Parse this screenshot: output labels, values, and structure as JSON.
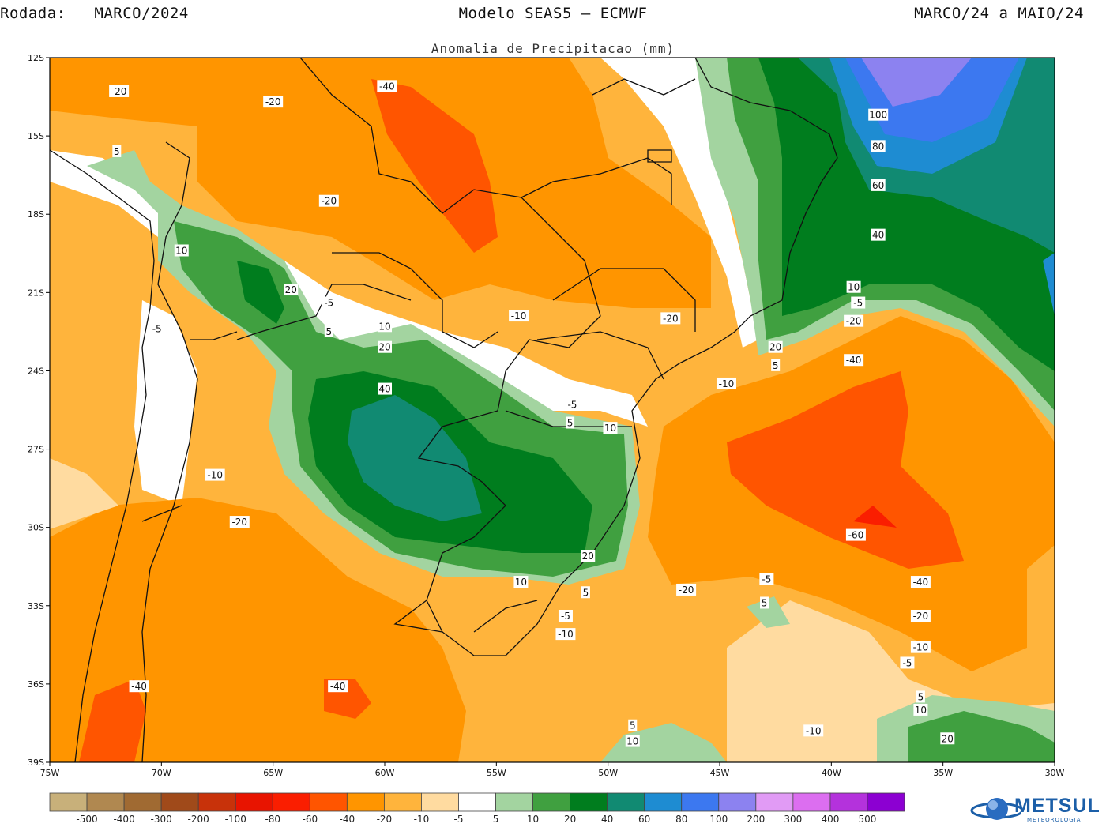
{
  "header": {
    "run_label": "Rodada:",
    "run_value": "MARCO/2024",
    "model": "Modelo SEAS5 – ECMWF",
    "period": "MARCO/24 a MAIO/24"
  },
  "map": {
    "title": "Anomalia de Precipitacao (mm)",
    "lon_ticks": [
      "75W",
      "70W",
      "65W",
      "60W",
      "55W",
      "50W",
      "45W",
      "40W",
      "35W",
      "30W"
    ],
    "lat_ticks": [
      "12S",
      "15S",
      "18S",
      "21S",
      "24S",
      "27S",
      "30S",
      "33S",
      "36S",
      "39S"
    ],
    "contour_labels": [
      {
        "t": "-20",
        "lon": -71.9,
        "lat": -13.3
      },
      {
        "t": "-20",
        "lon": -65,
        "lat": -13.7
      },
      {
        "t": "-40",
        "lon": -59.9,
        "lat": -13.1
      },
      {
        "t": "5",
        "lon": -72,
        "lat": -15.6
      },
      {
        "t": "-20",
        "lon": -62.5,
        "lat": -17.5
      },
      {
        "t": "10",
        "lon": -69.1,
        "lat": -19.4
      },
      {
        "t": "20",
        "lon": -64.2,
        "lat": -20.9
      },
      {
        "t": "-5",
        "lon": -62.5,
        "lat": -21.4
      },
      {
        "t": "-5",
        "lon": -70.2,
        "lat": -22.4
      },
      {
        "t": "5",
        "lon": -62.5,
        "lat": -22.5
      },
      {
        "t": "10",
        "lon": -60,
        "lat": -22.3
      },
      {
        "t": "20",
        "lon": -60,
        "lat": -23.1
      },
      {
        "t": "-10",
        "lon": -54,
        "lat": -21.9
      },
      {
        "t": "-20",
        "lon": -47.2,
        "lat": -22
      },
      {
        "t": "-10",
        "lon": -44.7,
        "lat": -24.5
      },
      {
        "t": "40",
        "lon": -60,
        "lat": -24.7
      },
      {
        "t": "-5",
        "lon": -51.6,
        "lat": -25.3
      },
      {
        "t": "5",
        "lon": -51.7,
        "lat": -26
      },
      {
        "t": "10",
        "lon": -49.9,
        "lat": -26.2
      },
      {
        "t": "-10",
        "lon": -67.6,
        "lat": -28
      },
      {
        "t": "-20",
        "lon": -66.5,
        "lat": -29.8
      },
      {
        "t": "20",
        "lon": -50.9,
        "lat": -31.1
      },
      {
        "t": "10",
        "lon": -53.9,
        "lat": -32.1
      },
      {
        "t": "5",
        "lon": -51,
        "lat": -32.5
      },
      {
        "t": "-5",
        "lon": -51.9,
        "lat": -33.4
      },
      {
        "t": "-10",
        "lon": -51.9,
        "lat": -34.1
      },
      {
        "t": "-40",
        "lon": -71,
        "lat": -36.1
      },
      {
        "t": "-40",
        "lon": -62.1,
        "lat": -36.1
      },
      {
        "t": "-20",
        "lon": -46.5,
        "lat": -32.4
      },
      {
        "t": "-5",
        "lon": -42.9,
        "lat": -32
      },
      {
        "t": "5",
        "lon": -43,
        "lat": -32.9
      },
      {
        "t": "-60",
        "lon": -38.9,
        "lat": -30.3
      },
      {
        "t": "-40",
        "lon": -36,
        "lat": -32.1
      },
      {
        "t": "-20",
        "lon": -36,
        "lat": -33.4
      },
      {
        "t": "-10",
        "lon": -36,
        "lat": -34.6
      },
      {
        "t": "-5",
        "lon": -36.6,
        "lat": -35.2
      },
      {
        "t": "5",
        "lon": -36,
        "lat": -36.5
      },
      {
        "t": "10",
        "lon": -36,
        "lat": -37
      },
      {
        "t": "20",
        "lon": -34.8,
        "lat": -38.1
      },
      {
        "t": "-10",
        "lon": -40.8,
        "lat": -37.8
      },
      {
        "t": "5",
        "lon": -48.9,
        "lat": -37.6
      },
      {
        "t": "10",
        "lon": -48.9,
        "lat": -38.2
      },
      {
        "t": "100",
        "lon": -37.9,
        "lat": -14.2
      },
      {
        "t": "80",
        "lon": -37.9,
        "lat": -15.4
      },
      {
        "t": "60",
        "lon": -37.9,
        "lat": -16.9
      },
      {
        "t": "40",
        "lon": -37.9,
        "lat": -18.8
      },
      {
        "t": "10",
        "lon": -39,
        "lat": -20.8
      },
      {
        "t": "-5",
        "lon": -38.8,
        "lat": -21.4
      },
      {
        "t": "-20",
        "lon": -39,
        "lat": -22.1
      },
      {
        "t": "-40",
        "lon": -39,
        "lat": -23.6
      },
      {
        "t": "20",
        "lon": -42.5,
        "lat": -23.1
      },
      {
        "t": "5",
        "lon": -42.5,
        "lat": -23.8
      }
    ]
  },
  "colorbar": {
    "colors": [
      "#c8b07a",
      "#b08850",
      "#a06a32",
      "#a04a1a",
      "#c8320a",
      "#e81400",
      "#fa1e00",
      "#ff5500",
      "#ff9500",
      "#ffb43c",
      "#ffdba0",
      "#ffffff",
      "#a3d4a0",
      "#40a040",
      "#007d1e",
      "#118a72",
      "#1e8cd2",
      "#3c78f0",
      "#8c82f0",
      "#e19bf5",
      "#dc6ef0",
      "#b432dc",
      "#8c00d2"
    ],
    "labels": [
      "-500",
      "-400",
      "-300",
      "-200",
      "-100",
      "-80",
      "-60",
      "-40",
      "-20",
      "-10",
      "-5",
      "5",
      "10",
      "20",
      "40",
      "60",
      "80",
      "100",
      "200",
      "300",
      "400",
      "500"
    ]
  },
  "logo": {
    "text": "METSUL",
    "sub": "METEOROLOGIA"
  }
}
